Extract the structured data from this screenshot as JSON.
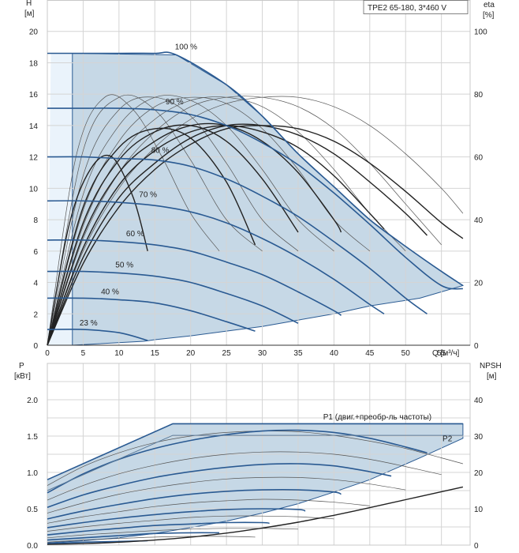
{
  "chart_data": [
    {
      "type": "line",
      "title": "TPE2 65-180, 3*460 V",
      "xlabel": "Q [м³/ч]",
      "ylabel": "H\n[м]",
      "y2label": "eta\n[%]",
      "xlim": [
        0,
        59
      ],
      "ylim": [
        0,
        22
      ],
      "y2lim": [
        0,
        110
      ],
      "x_ticks": [
        0,
        5,
        10,
        15,
        20,
        25,
        30,
        35,
        40,
        45,
        50,
        55
      ],
      "y_ticks": [
        0,
        2,
        4,
        6,
        8,
        10,
        12,
        14,
        16,
        18,
        20
      ],
      "y2_ticks": [
        0,
        20,
        40,
        60,
        80,
        100
      ],
      "grid": true,
      "series": [
        {
          "name": "100 %",
          "x": [
            0,
            5,
            10,
            15,
            18,
            25,
            30,
            35,
            40,
            45,
            50,
            55,
            58
          ],
          "y": [
            18.6,
            18.6,
            18.6,
            18.6,
            18.5,
            16.6,
            14.6,
            12.2,
            10.1,
            8.0,
            6.3,
            4.7,
            3.8
          ]
        },
        {
          "name": "90 %",
          "x": [
            0,
            5,
            10,
            15,
            20,
            25,
            30,
            35,
            40,
            45,
            50,
            55,
            58
          ],
          "y": [
            15.1,
            15.1,
            15.1,
            15.0,
            14.7,
            14.0,
            12.9,
            11.5,
            9.7,
            7.7,
            5.6,
            3.8,
            3.6
          ]
        },
        {
          "name": "80 %",
          "x": [
            0,
            5,
            10,
            15,
            20,
            25,
            30,
            35,
            40,
            45,
            50,
            53
          ],
          "y": [
            12.0,
            12.0,
            11.9,
            11.8,
            11.4,
            10.6,
            9.5,
            8.2,
            6.6,
            4.9,
            3.0,
            2.0
          ]
        },
        {
          "name": "70 %",
          "x": [
            0,
            5,
            10,
            15,
            20,
            25,
            30,
            35,
            40,
            45,
            47
          ],
          "y": [
            9.2,
            9.2,
            9.1,
            8.9,
            8.5,
            7.8,
            6.8,
            5.6,
            4.2,
            2.6,
            2.0
          ]
        },
        {
          "name": "60 %",
          "x": [
            0,
            5,
            10,
            15,
            20,
            25,
            30,
            35,
            40,
            41
          ],
          "y": [
            6.7,
            6.7,
            6.6,
            6.4,
            6.0,
            5.3,
            4.5,
            3.4,
            2.2,
            1.9
          ]
        },
        {
          "name": "50 %",
          "x": [
            0,
            5,
            10,
            15,
            20,
            25,
            30,
            35
          ],
          "y": [
            4.7,
            4.7,
            4.6,
            4.4,
            4.0,
            3.3,
            2.5,
            1.4
          ]
        },
        {
          "name": "40 %",
          "x": [
            0,
            5,
            10,
            15,
            20,
            25,
            29
          ],
          "y": [
            3.0,
            3.0,
            2.9,
            2.7,
            2.2,
            1.5,
            0.9
          ]
        },
        {
          "name": "23 %",
          "x": [
            0,
            5,
            10,
            14
          ],
          "y": [
            1.0,
            1.0,
            0.8,
            0.3
          ]
        }
      ],
      "eta_curves": [
        {
          "x": [
            0,
            5,
            10,
            15,
            20,
            25,
            30,
            35,
            40,
            45,
            50,
            55,
            58
          ],
          "y": [
            0,
            26,
            44,
            56,
            64,
            69,
            70,
            69,
            65,
            58,
            49,
            39,
            34
          ]
        },
        {
          "x": [
            0,
            5,
            10,
            15,
            20,
            25,
            30,
            35,
            40,
            45,
            50,
            53
          ],
          "y": [
            0,
            28,
            47,
            58,
            66,
            70,
            70,
            67,
            61,
            52,
            42,
            35
          ]
        },
        {
          "x": [
            0,
            5,
            10,
            15,
            20,
            25,
            30,
            35,
            40,
            45,
            47
          ],
          "y": [
            0,
            31,
            51,
            62,
            68,
            70,
            68,
            63,
            54,
            42,
            37
          ]
        },
        {
          "x": [
            0,
            5,
            10,
            15,
            20,
            25,
            30,
            35,
            40,
            41
          ],
          "y": [
            0,
            35,
            55,
            65,
            70,
            70,
            65,
            55,
            40,
            36
          ]
        },
        {
          "x": [
            0,
            5,
            10,
            15,
            20,
            25,
            30,
            35
          ],
          "y": [
            0,
            39,
            59,
            68,
            70,
            65,
            53,
            36
          ]
        },
        {
          "x": [
            0,
            5,
            10,
            15,
            20,
            25,
            29
          ],
          "y": [
            0,
            44,
            63,
            69,
            66,
            52,
            32
          ]
        },
        {
          "x": [
            0,
            3,
            6,
            9,
            12,
            14
          ],
          "y": [
            0,
            38,
            56,
            60,
            47,
            30
          ]
        }
      ],
      "eta_thin": [
        {
          "x": [
            0,
            5,
            10,
            15,
            20,
            25,
            30,
            35,
            40,
            45,
            50,
            55,
            58
          ],
          "y": [
            0,
            30,
            50,
            63,
            72,
            77,
            79,
            79,
            76,
            70,
            61,
            50,
            42
          ]
        },
        {
          "x": [
            0,
            5,
            10,
            15,
            20,
            25,
            30,
            35,
            40,
            45,
            50,
            55
          ],
          "y": [
            0,
            34,
            55,
            68,
            76,
            79,
            79,
            76,
            69,
            58,
            45,
            32
          ]
        },
        {
          "x": [
            0,
            5,
            10,
            15,
            20,
            25,
            30,
            35,
            40,
            45,
            50
          ],
          "y": [
            0,
            38,
            60,
            72,
            78,
            79,
            76,
            68,
            56,
            42,
            30
          ]
        },
        {
          "x": [
            0,
            5,
            10,
            15,
            20,
            25,
            30,
            35,
            40,
            45
          ],
          "y": [
            0,
            43,
            65,
            76,
            79,
            77,
            69,
            56,
            40,
            30
          ]
        },
        {
          "x": [
            0,
            5,
            10,
            15,
            20,
            25,
            30,
            35,
            40
          ],
          "y": [
            0,
            48,
            70,
            79,
            78,
            70,
            56,
            40,
            30
          ]
        },
        {
          "x": [
            0,
            5,
            10,
            15,
            20,
            25,
            30,
            35
          ],
          "y": [
            0,
            54,
            75,
            79,
            73,
            58,
            40,
            30
          ]
        },
        {
          "x": [
            0,
            5,
            10,
            15,
            20,
            25,
            30
          ],
          "y": [
            0,
            62,
            79,
            75,
            59,
            40,
            30
          ]
        },
        {
          "x": [
            0,
            4,
            8,
            12,
            16,
            20,
            24
          ],
          "y": [
            0,
            60,
            79,
            75,
            60,
            42,
            30
          ]
        }
      ],
      "envelope": {
        "x": [
          3.5,
          3.5,
          18,
          25,
          30,
          35,
          40,
          45,
          50,
          55,
          58,
          52,
          45,
          40,
          35,
          30,
          25,
          20,
          15,
          13.5,
          3.5
        ],
        "y": [
          0,
          18.6,
          18.5,
          16.6,
          14.6,
          12.2,
          10.1,
          8.0,
          6.3,
          4.7,
          3.8,
          3.0,
          2.5,
          2.0,
          1.6,
          1.2,
          0.9,
          0.6,
          0.35,
          0.25,
          0
        ]
      },
      "envelope_light": {
        "x": [
          0,
          0.5,
          3.5,
          3.5,
          0
        ],
        "y": [
          0,
          18.6,
          18.6,
          0,
          0
        ]
      },
      "label_positions": [
        {
          "x": 17.8,
          "y": 18.7
        },
        {
          "x": 16.5,
          "y": 15.2
        },
        {
          "x": 14.5,
          "y": 12.1
        },
        {
          "x": 12.8,
          "y": 9.3
        },
        {
          "x": 11.0,
          "y": 6.8
        },
        {
          "x": 9.5,
          "y": 4.8
        },
        {
          "x": 7.5,
          "y": 3.1
        },
        {
          "x": 4.5,
          "y": 1.1
        }
      ]
    },
    {
      "type": "line",
      "xlabel": "",
      "ylabel": "P\n[кВт]",
      "y2label": "NPSH\n[м]",
      "xlim": [
        0,
        59
      ],
      "ylim": [
        0,
        2.0
      ],
      "y2lim": [
        0,
        40
      ],
      "y_ticks": [
        0.0,
        0.5,
        1.0,
        1.5,
        2.0
      ],
      "y_tick_labels": [
        "0.0",
        "0.5",
        "1.0",
        "1.5",
        "2.0"
      ],
      "y2_ticks": [
        0,
        10,
        20,
        30,
        40
      ],
      "grid": true,
      "series": [
        {
          "name": "P1 (двиг.+преобр-ль частоты)",
          "x": [
            0,
            17.5,
            58
          ],
          "y": [
            0.9,
            1.67,
            1.67
          ]
        },
        {
          "name": "P2",
          "x": [
            0,
            17.5,
            58
          ],
          "y": [
            0.75,
            1.51,
            1.51
          ]
        }
      ],
      "power_curves": [
        {
          "x": [
            0,
            5,
            10,
            15,
            20,
            25,
            30,
            35,
            40,
            45,
            50,
            53
          ],
          "y": [
            0.72,
            0.98,
            1.18,
            1.33,
            1.44,
            1.52,
            1.57,
            1.58,
            1.55,
            1.47,
            1.35,
            1.27
          ]
        },
        {
          "x": [
            0,
            5,
            10,
            15,
            20,
            25,
            30,
            35,
            40,
            45,
            48
          ],
          "y": [
            0.52,
            0.69,
            0.82,
            0.93,
            1.01,
            1.07,
            1.11,
            1.12,
            1.09,
            1.01,
            0.95
          ]
        },
        {
          "x": [
            0,
            5,
            10,
            15,
            20,
            25,
            30,
            35,
            40,
            41
          ],
          "y": [
            0.36,
            0.47,
            0.56,
            0.64,
            0.7,
            0.74,
            0.76,
            0.76,
            0.73,
            0.7
          ]
        },
        {
          "x": [
            0,
            5,
            10,
            15,
            20,
            25,
            30,
            35,
            36
          ],
          "y": [
            0.24,
            0.31,
            0.37,
            0.42,
            0.46,
            0.49,
            0.5,
            0.49,
            0.47
          ]
        },
        {
          "x": [
            0,
            5,
            10,
            15,
            20,
            25,
            30,
            31
          ],
          "y": [
            0.14,
            0.19,
            0.23,
            0.27,
            0.29,
            0.31,
            0.31,
            0.3
          ]
        },
        {
          "x": [
            0,
            5,
            10,
            15,
            20,
            24
          ],
          "y": [
            0.07,
            0.1,
            0.13,
            0.16,
            0.17,
            0.17
          ]
        },
        {
          "x": [
            0,
            5,
            10,
            14
          ],
          "y": [
            0.02,
            0.04,
            0.05,
            0.06
          ]
        }
      ],
      "power_thin": [
        {
          "x": [
            0,
            5,
            10,
            15,
            20,
            25,
            30,
            35,
            40,
            45,
            50,
            55,
            58
          ],
          "y": [
            0.82,
            1.08,
            1.27,
            1.41,
            1.5,
            1.55,
            1.57,
            1.56,
            1.51,
            1.43,
            1.33,
            1.2,
            1.12
          ]
        },
        {
          "x": [
            0,
            5,
            10,
            15,
            20,
            25,
            30,
            35,
            40,
            45,
            50,
            55
          ],
          "y": [
            0.62,
            0.82,
            0.98,
            1.1,
            1.19,
            1.25,
            1.28,
            1.28,
            1.25,
            1.18,
            1.08,
            0.97
          ]
        },
        {
          "x": [
            0,
            5,
            10,
            15,
            20,
            25,
            30,
            35,
            40,
            45,
            50
          ],
          "y": [
            0.44,
            0.58,
            0.7,
            0.79,
            0.86,
            0.91,
            0.93,
            0.93,
            0.9,
            0.84,
            0.76
          ]
        },
        {
          "x": [
            0,
            5,
            10,
            15,
            20,
            25,
            30,
            35,
            40,
            45
          ],
          "y": [
            0.3,
            0.39,
            0.46,
            0.53,
            0.58,
            0.61,
            0.63,
            0.62,
            0.59,
            0.54
          ]
        },
        {
          "x": [
            0,
            5,
            10,
            15,
            20,
            25,
            30,
            35,
            40
          ],
          "y": [
            0.19,
            0.25,
            0.3,
            0.34,
            0.38,
            0.4,
            0.4,
            0.39,
            0.36
          ]
        },
        {
          "x": [
            0,
            5,
            10,
            15,
            20,
            25,
            30,
            35
          ],
          "y": [
            0.1,
            0.14,
            0.17,
            0.2,
            0.22,
            0.23,
            0.23,
            0.22
          ]
        },
        {
          "x": [
            0,
            5,
            10,
            15,
            20,
            25,
            29
          ],
          "y": [
            0.04,
            0.07,
            0.09,
            0.11,
            0.12,
            0.12,
            0.11
          ]
        }
      ],
      "npsh": {
        "x": [
          0,
          5,
          10,
          15,
          20,
          25,
          30,
          35,
          40,
          45,
          50,
          55,
          58
        ],
        "y": [
          0.2,
          0.4,
          0.8,
          1.4,
          2.2,
          3.3,
          4.7,
          6.3,
          8.2,
          10.3,
          12.5,
          14.7,
          16.0
        ]
      },
      "envelope": {
        "x": [
          0,
          17.5,
          58,
          58,
          52,
          45,
          40,
          35,
          30,
          25,
          20,
          15,
          10,
          5,
          0
        ],
        "y": [
          0.9,
          1.67,
          1.67,
          1.47,
          1.2,
          0.9,
          0.73,
          0.57,
          0.44,
          0.33,
          0.24,
          0.16,
          0.1,
          0.06,
          0.03
        ]
      },
      "label_positions": [
        {
          "x": 38.5,
          "y": 1.73
        },
        {
          "x": 56.5,
          "y": 1.43
        }
      ]
    }
  ]
}
